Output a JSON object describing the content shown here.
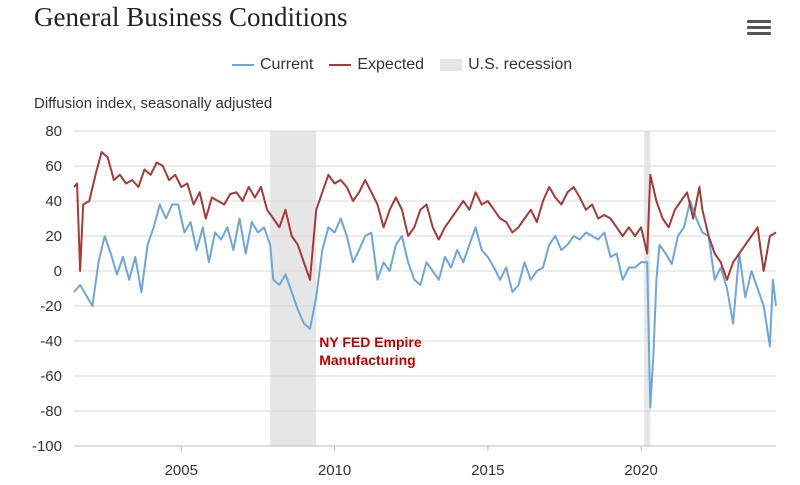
{
  "header": {
    "title": "General Business Conditions",
    "menu_icon": "hamburger-menu-icon"
  },
  "legend": [
    {
      "label": "Current",
      "color": "#6ea6d6",
      "kind": "line"
    },
    {
      "label": "Expected",
      "color": "#a33b36",
      "kind": "line"
    },
    {
      "label": "U.S. recession",
      "color": "#e6e6e6",
      "kind": "band"
    }
  ],
  "chart_data": {
    "type": "line",
    "title": "General Business Conditions",
    "ylabel": "Diffusion index, seasonally adjusted",
    "xlabel": "",
    "ylim": [
      -100,
      80
    ],
    "xlim": [
      2001.5,
      2024.4
    ],
    "y_ticks": [
      80,
      60,
      40,
      20,
      0,
      -20,
      -40,
      -60,
      -80,
      -100
    ],
    "x_ticks": [
      2005,
      2010,
      2015,
      2020
    ],
    "grid": true,
    "legend_position": "top",
    "recessions": [
      {
        "start": 2007.9,
        "end": 2009.4
      },
      {
        "start": 2020.1,
        "end": 2020.3
      }
    ],
    "annotation": {
      "lines": [
        "NY FED Empire",
        "Manufacturing"
      ],
      "x": 2009.5,
      "y": -40,
      "color": "#c00000"
    },
    "series": [
      {
        "name": "Current",
        "color": "#6ea6d6",
        "points": [
          [
            2001.5,
            -12
          ],
          [
            2001.7,
            -8
          ],
          [
            2001.9,
            -14
          ],
          [
            2002.1,
            -20
          ],
          [
            2002.3,
            5
          ],
          [
            2002.5,
            20
          ],
          [
            2002.7,
            10
          ],
          [
            2002.9,
            -2
          ],
          [
            2003.1,
            8
          ],
          [
            2003.3,
            -5
          ],
          [
            2003.5,
            8
          ],
          [
            2003.7,
            -12
          ],
          [
            2003.9,
            15
          ],
          [
            2004.1,
            25
          ],
          [
            2004.3,
            38
          ],
          [
            2004.5,
            30
          ],
          [
            2004.7,
            38
          ],
          [
            2004.9,
            38
          ],
          [
            2005.1,
            22
          ],
          [
            2005.3,
            28
          ],
          [
            2005.5,
            12
          ],
          [
            2005.7,
            25
          ],
          [
            2005.9,
            5
          ],
          [
            2006.1,
            22
          ],
          [
            2006.3,
            18
          ],
          [
            2006.5,
            25
          ],
          [
            2006.7,
            12
          ],
          [
            2006.9,
            30
          ],
          [
            2007.1,
            10
          ],
          [
            2007.3,
            28
          ],
          [
            2007.5,
            22
          ],
          [
            2007.7,
            25
          ],
          [
            2007.9,
            15
          ],
          [
            2008.0,
            -5
          ],
          [
            2008.2,
            -8
          ],
          [
            2008.4,
            -2
          ],
          [
            2008.6,
            -12
          ],
          [
            2008.8,
            -22
          ],
          [
            2009.0,
            -30
          ],
          [
            2009.2,
            -33
          ],
          [
            2009.4,
            -15
          ],
          [
            2009.6,
            12
          ],
          [
            2009.8,
            25
          ],
          [
            2010.0,
            22
          ],
          [
            2010.2,
            30
          ],
          [
            2010.4,
            20
          ],
          [
            2010.6,
            5
          ],
          [
            2010.8,
            12
          ],
          [
            2011.0,
            20
          ],
          [
            2011.2,
            22
          ],
          [
            2011.4,
            -5
          ],
          [
            2011.6,
            5
          ],
          [
            2011.8,
            0
          ],
          [
            2012.0,
            15
          ],
          [
            2012.2,
            20
          ],
          [
            2012.4,
            5
          ],
          [
            2012.6,
            -5
          ],
          [
            2012.8,
            -8
          ],
          [
            2013.0,
            5
          ],
          [
            2013.2,
            0
          ],
          [
            2013.4,
            -5
          ],
          [
            2013.6,
            8
          ],
          [
            2013.8,
            2
          ],
          [
            2014.0,
            12
          ],
          [
            2014.2,
            5
          ],
          [
            2014.4,
            15
          ],
          [
            2014.6,
            25
          ],
          [
            2014.8,
            12
          ],
          [
            2015.0,
            8
          ],
          [
            2015.2,
            2
          ],
          [
            2015.4,
            -5
          ],
          [
            2015.6,
            2
          ],
          [
            2015.8,
            -12
          ],
          [
            2016.0,
            -8
          ],
          [
            2016.2,
            5
          ],
          [
            2016.4,
            -5
          ],
          [
            2016.6,
            0
          ],
          [
            2016.8,
            2
          ],
          [
            2017.0,
            15
          ],
          [
            2017.2,
            20
          ],
          [
            2017.4,
            12
          ],
          [
            2017.6,
            15
          ],
          [
            2017.8,
            20
          ],
          [
            2018.0,
            18
          ],
          [
            2018.2,
            22
          ],
          [
            2018.4,
            20
          ],
          [
            2018.6,
            18
          ],
          [
            2018.8,
            22
          ],
          [
            2019.0,
            8
          ],
          [
            2019.2,
            10
          ],
          [
            2019.4,
            -5
          ],
          [
            2019.6,
            2
          ],
          [
            2019.8,
            2
          ],
          [
            2020.0,
            5
          ],
          [
            2020.2,
            5
          ],
          [
            2020.3,
            -78
          ],
          [
            2020.4,
            -48
          ],
          [
            2020.5,
            -5
          ],
          [
            2020.6,
            15
          ],
          [
            2020.8,
            10
          ],
          [
            2021.0,
            4
          ],
          [
            2021.2,
            20
          ],
          [
            2021.4,
            25
          ],
          [
            2021.6,
            40
          ],
          [
            2021.8,
            30
          ],
          [
            2022.0,
            22
          ],
          [
            2022.2,
            20
          ],
          [
            2022.4,
            -5
          ],
          [
            2022.6,
            2
          ],
          [
            2022.8,
            -10
          ],
          [
            2023.0,
            -30
          ],
          [
            2023.2,
            10
          ],
          [
            2023.4,
            -15
          ],
          [
            2023.6,
            0
          ],
          [
            2023.8,
            -10
          ],
          [
            2024.0,
            -20
          ],
          [
            2024.2,
            -43
          ],
          [
            2024.3,
            -5
          ],
          [
            2024.4,
            -20
          ]
        ]
      },
      {
        "name": "Expected",
        "color": "#a33b36",
        "points": [
          [
            2001.5,
            48
          ],
          [
            2001.6,
            50
          ],
          [
            2001.7,
            0
          ],
          [
            2001.8,
            38
          ],
          [
            2002.0,
            40
          ],
          [
            2002.2,
            55
          ],
          [
            2002.4,
            68
          ],
          [
            2002.6,
            65
          ],
          [
            2002.8,
            52
          ],
          [
            2003.0,
            55
          ],
          [
            2003.2,
            50
          ],
          [
            2003.4,
            52
          ],
          [
            2003.6,
            48
          ],
          [
            2003.8,
            58
          ],
          [
            2004.0,
            55
          ],
          [
            2004.2,
            62
          ],
          [
            2004.4,
            60
          ],
          [
            2004.6,
            52
          ],
          [
            2004.8,
            55
          ],
          [
            2005.0,
            48
          ],
          [
            2005.2,
            50
          ],
          [
            2005.4,
            38
          ],
          [
            2005.6,
            45
          ],
          [
            2005.8,
            30
          ],
          [
            2006.0,
            42
          ],
          [
            2006.2,
            40
          ],
          [
            2006.4,
            38
          ],
          [
            2006.6,
            44
          ],
          [
            2006.8,
            45
          ],
          [
            2007.0,
            40
          ],
          [
            2007.2,
            48
          ],
          [
            2007.4,
            42
          ],
          [
            2007.6,
            48
          ],
          [
            2007.8,
            35
          ],
          [
            2008.0,
            30
          ],
          [
            2008.2,
            25
          ],
          [
            2008.4,
            35
          ],
          [
            2008.6,
            20
          ],
          [
            2008.8,
            15
          ],
          [
            2009.0,
            5
          ],
          [
            2009.2,
            -5
          ],
          [
            2009.4,
            35
          ],
          [
            2009.6,
            45
          ],
          [
            2009.8,
            55
          ],
          [
            2010.0,
            50
          ],
          [
            2010.2,
            52
          ],
          [
            2010.4,
            48
          ],
          [
            2010.6,
            40
          ],
          [
            2010.8,
            45
          ],
          [
            2011.0,
            52
          ],
          [
            2011.2,
            45
          ],
          [
            2011.4,
            38
          ],
          [
            2011.6,
            25
          ],
          [
            2011.8,
            35
          ],
          [
            2012.0,
            42
          ],
          [
            2012.2,
            35
          ],
          [
            2012.4,
            20
          ],
          [
            2012.6,
            25
          ],
          [
            2012.8,
            35
          ],
          [
            2013.0,
            38
          ],
          [
            2013.2,
            25
          ],
          [
            2013.4,
            18
          ],
          [
            2013.6,
            25
          ],
          [
            2013.8,
            30
          ],
          [
            2014.0,
            35
          ],
          [
            2014.2,
            40
          ],
          [
            2014.4,
            35
          ],
          [
            2014.6,
            45
          ],
          [
            2014.8,
            38
          ],
          [
            2015.0,
            40
          ],
          [
            2015.2,
            35
          ],
          [
            2015.4,
            30
          ],
          [
            2015.6,
            28
          ],
          [
            2015.8,
            22
          ],
          [
            2016.0,
            25
          ],
          [
            2016.2,
            30
          ],
          [
            2016.4,
            35
          ],
          [
            2016.6,
            28
          ],
          [
            2016.8,
            40
          ],
          [
            2017.0,
            48
          ],
          [
            2017.2,
            42
          ],
          [
            2017.4,
            38
          ],
          [
            2017.6,
            45
          ],
          [
            2017.8,
            48
          ],
          [
            2018.0,
            42
          ],
          [
            2018.2,
            35
          ],
          [
            2018.4,
            38
          ],
          [
            2018.6,
            30
          ],
          [
            2018.8,
            32
          ],
          [
            2019.0,
            30
          ],
          [
            2019.2,
            25
          ],
          [
            2019.4,
            20
          ],
          [
            2019.6,
            25
          ],
          [
            2019.8,
            20
          ],
          [
            2020.0,
            25
          ],
          [
            2020.2,
            10
          ],
          [
            2020.3,
            55
          ],
          [
            2020.5,
            40
          ],
          [
            2020.7,
            30
          ],
          [
            2020.9,
            25
          ],
          [
            2021.1,
            35
          ],
          [
            2021.3,
            40
          ],
          [
            2021.5,
            45
          ],
          [
            2021.7,
            30
          ],
          [
            2021.9,
            48
          ],
          [
            2022.0,
            35
          ],
          [
            2022.2,
            20
          ],
          [
            2022.4,
            10
          ],
          [
            2022.6,
            5
          ],
          [
            2022.8,
            -5
          ],
          [
            2023.0,
            5
          ],
          [
            2023.2,
            10
          ],
          [
            2023.4,
            15
          ],
          [
            2023.6,
            20
          ],
          [
            2023.8,
            25
          ],
          [
            2024.0,
            0
          ],
          [
            2024.2,
            20
          ],
          [
            2024.4,
            22
          ]
        ]
      }
    ]
  }
}
